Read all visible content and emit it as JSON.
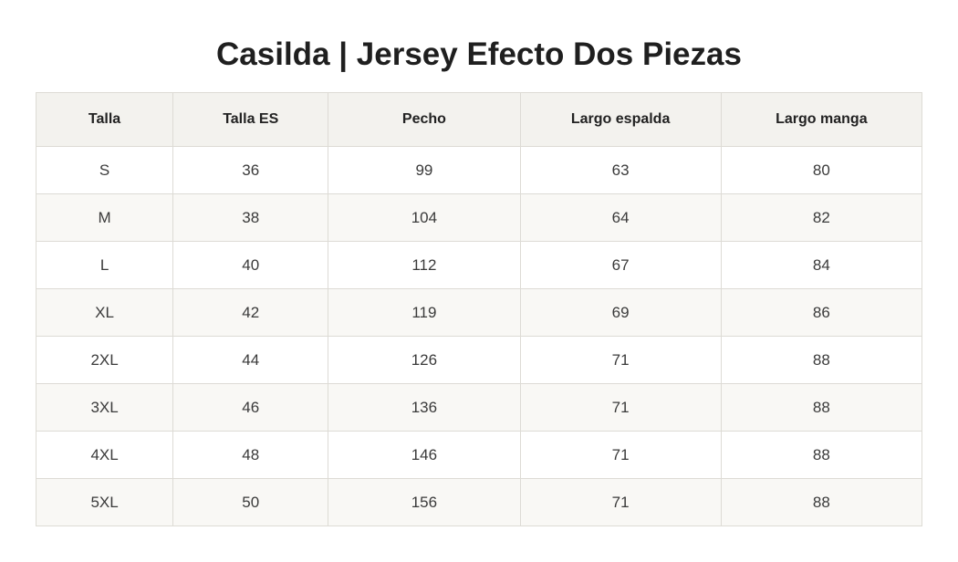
{
  "title": "Casilda | Jersey Efecto Dos Piezas",
  "table": {
    "headers": [
      "Talla",
      "Talla ES",
      "Pecho",
      "Largo espalda",
      "Largo manga"
    ],
    "rows": [
      [
        "S",
        "36",
        "99",
        "63",
        "80"
      ],
      [
        "M",
        "38",
        "104",
        "64",
        "82"
      ],
      [
        "L",
        "40",
        "112",
        "67",
        "84"
      ],
      [
        "XL",
        "42",
        "119",
        "69",
        "86"
      ],
      [
        "2XL",
        "44",
        "126",
        "71",
        "88"
      ],
      [
        "3XL",
        "46",
        "136",
        "71",
        "88"
      ],
      [
        "4XL",
        "48",
        "146",
        "71",
        "88"
      ],
      [
        "5XL",
        "50",
        "156",
        "71",
        "88"
      ]
    ]
  },
  "colors": {
    "header_bg": "#f3f2ee",
    "stripe_bg": "#f9f8f5",
    "border": "#dddbd5",
    "title_text": "#1f1f1f"
  }
}
